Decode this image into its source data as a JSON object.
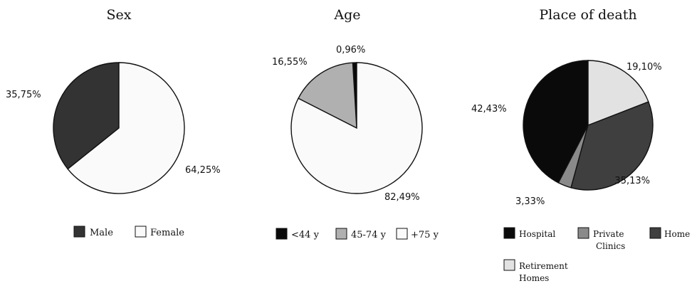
{
  "colors": {
    "black": "#0a0a0a",
    "dark_gray": "#333333",
    "mid_gray": "#3f3f3f",
    "light_gray": "#b0b0b0",
    "gray": "#8a8a8a",
    "very_light": "#e2e2e2",
    "white": "#fafafa",
    "stroke": "#111111"
  },
  "chart_data": [
    {
      "type": "pie",
      "title": "Sex",
      "slices": [
        {
          "label": "Male",
          "value": 35.75,
          "value_label": "35,75%",
          "color": "#333333"
        },
        {
          "label": "Female",
          "value": 64.25,
          "value_label": "64,25%",
          "color": "#fafafa"
        }
      ]
    },
    {
      "type": "pie",
      "title": "Age",
      "slices": [
        {
          "label": "<44 y",
          "value": 0.96,
          "value_label": "0,96%",
          "color": "#0a0a0a"
        },
        {
          "label": "45-74 y",
          "value": 16.55,
          "value_label": "16,55%",
          "color": "#b0b0b0"
        },
        {
          "label": "+75 y",
          "value": 82.49,
          "value_label": "82,49%",
          "color": "#fafafa"
        }
      ]
    },
    {
      "type": "pie",
      "title": "Place of death",
      "slices": [
        {
          "label": "Hospital",
          "value": 42.43,
          "value_label": "42,43%",
          "color": "#0a0a0a"
        },
        {
          "label": "Private Clinics",
          "value": 3.33,
          "value_label": "3,33%",
          "color": "#8a8a8a"
        },
        {
          "label": "Home",
          "value": 35.13,
          "value_label": "35,13%",
          "color": "#3f3f3f"
        },
        {
          "label": "Retirement Homes",
          "value": 19.1,
          "value_label": "19,10%",
          "color": "#e2e2e2"
        }
      ]
    }
  ]
}
